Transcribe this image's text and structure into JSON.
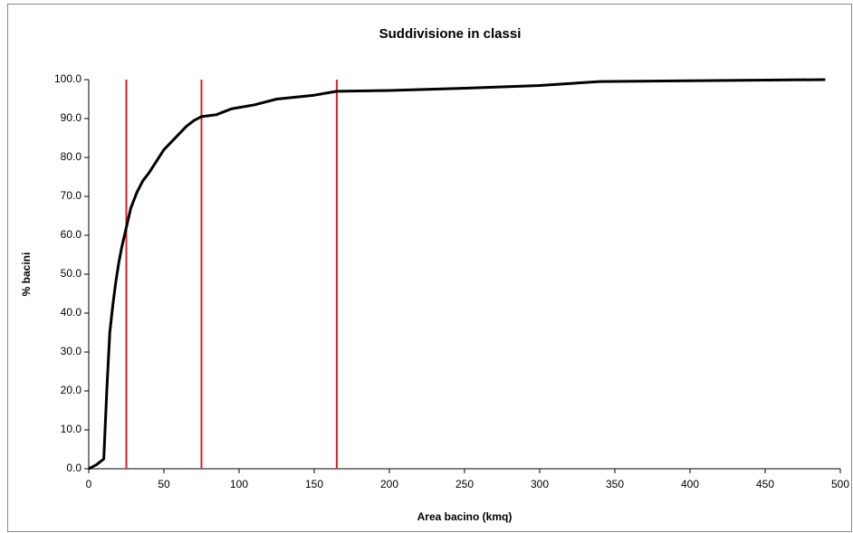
{
  "chart_data": {
    "type": "line",
    "title": "Suddivisione in classi",
    "xlabel": "Area bacino (kmq)",
    "ylabel": "% bacini",
    "x": [
      0,
      5,
      10,
      12,
      14,
      16,
      18,
      20,
      22,
      25,
      28,
      32,
      36,
      40,
      45,
      50,
      55,
      60,
      65,
      70,
      75,
      85,
      95,
      110,
      125,
      150,
      165,
      200,
      250,
      300,
      340,
      400,
      490
    ],
    "series": [
      {
        "name": "% bacini",
        "color": "#000000",
        "values": [
          0,
          1,
          2.5,
          20,
          35,
          42,
          48,
          53,
          57,
          62,
          67,
          71,
          74,
          76,
          79,
          82,
          84,
          86,
          88,
          89.5,
          90.5,
          91,
          92.5,
          93.5,
          95,
          96,
          97,
          97.2,
          97.8,
          98.5,
          99.5,
          99.7,
          100
        ]
      }
    ],
    "vlines": {
      "x": [
        25,
        75,
        165
      ],
      "color": "#e02020"
    },
    "xlim": [
      0,
      500
    ],
    "xticks": [
      0,
      50,
      100,
      150,
      200,
      250,
      300,
      350,
      400,
      450,
      500
    ],
    "ylim": [
      0,
      100
    ],
    "yticks": [
      {
        "value": 0,
        "label": "0.0"
      },
      {
        "value": 10,
        "label": "10.0"
      },
      {
        "value": 20,
        "label": "20.0"
      },
      {
        "value": 30,
        "label": "30.0"
      },
      {
        "value": 40,
        "label": "40.0"
      },
      {
        "value": 50,
        "label": "50.0"
      },
      {
        "value": 60,
        "label": "60.0"
      },
      {
        "value": 70,
        "label": "70.0"
      },
      {
        "value": 80,
        "label": "80.0"
      },
      {
        "value": 90,
        "label": "90.0"
      },
      {
        "value": 100,
        "label": "100.0"
      }
    ],
    "grid": false
  }
}
